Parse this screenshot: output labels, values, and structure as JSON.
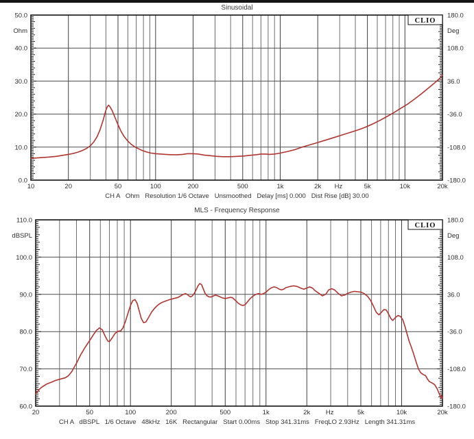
{
  "page": {
    "background": "#ffffff",
    "top_border_color": "#151515"
  },
  "charts": [
    {
      "id": "impedance",
      "title": "Sinusoidal",
      "brand": "CLIO",
      "status": "CH A   Ohm   Resolution 1/6 Octave   Unsmoothed   Delay [ms] 0.000   Dist Rise [dB] 30.00",
      "left_axis": {
        "unit": "Ohm",
        "min": 0,
        "max": 50,
        "tick_step": 10,
        "labels": [
          "50.0",
          "40.0",
          "30.0",
          "20.0",
          "10.0",
          "0.0"
        ]
      },
      "right_axis": {
        "unit": "Deg",
        "min": -180,
        "max": 180,
        "tick_step": 72,
        "labels": [
          "180.0",
          "108.0",
          "36.0",
          "-36.0",
          "-108.0",
          "-180.0"
        ]
      },
      "x_axis": {
        "unit": "Hz",
        "min": 10,
        "max": 20000,
        "labeled_ticks": [
          10,
          20,
          50,
          100,
          200,
          500,
          1000,
          2000,
          5000,
          10000,
          20000
        ],
        "tick_labels": [
          "10",
          "20",
          "50",
          "100",
          "200",
          "500",
          "1k",
          "2k",
          "5k",
          "10k",
          "20k"
        ]
      },
      "curve_color": "#b0342f"
    },
    {
      "id": "spl",
      "title": "MLS - Frequency Response",
      "brand": "CLIO",
      "status": "CH A   dBSPL   1/6 Octave   48kHz   16K   Rectangular   Start 0.00ms   Stop 341.31ms   FreqLO 2.93Hz   Length 341.31ms",
      "left_axis": {
        "unit": "dBSPL",
        "min": 60,
        "max": 110,
        "tick_step": 10,
        "labels": [
          "110.0",
          "100.0",
          "90.0",
          "80.0",
          "70.0",
          "60.0"
        ]
      },
      "right_axis": {
        "unit": "Deg",
        "min": -180,
        "max": 180,
        "tick_step": 72,
        "labels": [
          "180.0",
          "108.0",
          "36.0",
          "-36.0",
          "-108.0",
          "-180.0"
        ]
      },
      "x_axis": {
        "unit": "Hz",
        "min": 20,
        "max": 20000,
        "labeled_ticks": [
          20,
          50,
          100,
          200,
          500,
          1000,
          2000,
          5000,
          10000,
          20000
        ],
        "tick_labels": [
          "20",
          "50",
          "100",
          "200",
          "500",
          "1k",
          "2k",
          "5k",
          "10k",
          "20k"
        ]
      },
      "curve_color": "#b0342f"
    }
  ],
  "chart_data": [
    {
      "type": "line",
      "title": "Sinusoidal",
      "xlabel": "Hz",
      "ylabel": "Ohm",
      "y2label": "Deg",
      "xscale": "log",
      "xlim": [
        10,
        20000
      ],
      "ylim": [
        0,
        50
      ],
      "y2lim": [
        -180,
        180
      ],
      "grid": true,
      "series": [
        {
          "id": "impedance",
          "name": "Impedance (Ohm)",
          "color": "#b0342f",
          "points": [
            [
              10,
              6.6
            ],
            [
              11,
              6.7
            ],
            [
              12,
              6.8
            ],
            [
              14,
              7.0
            ],
            [
              16,
              7.2
            ],
            [
              18,
              7.5
            ],
            [
              20,
              7.8
            ],
            [
              22,
              8.1
            ],
            [
              24,
              8.5
            ],
            [
              26,
              9.0
            ],
            [
              28,
              9.6
            ],
            [
              30,
              10.4
            ],
            [
              32,
              11.6
            ],
            [
              34,
              13.2
            ],
            [
              36,
              15.4
            ],
            [
              38,
              18.2
            ],
            [
              40,
              21.2
            ],
            [
              41,
              22.2
            ],
            [
              42,
              22.7
            ],
            [
              43,
              22.3
            ],
            [
              45,
              21.0
            ],
            [
              47,
              19.2
            ],
            [
              50,
              16.8
            ],
            [
              53,
              14.7
            ],
            [
              56,
              13.2
            ],
            [
              60,
              11.8
            ],
            [
              64,
              10.8
            ],
            [
              68,
              10.1
            ],
            [
              72,
              9.6
            ],
            [
              78,
              9.0
            ],
            [
              85,
              8.5
            ],
            [
              92,
              8.2
            ],
            [
              100,
              8.0
            ],
            [
              110,
              7.9
            ],
            [
              120,
              7.8
            ],
            [
              135,
              7.7
            ],
            [
              150,
              7.7
            ],
            [
              165,
              7.8
            ],
            [
              180,
              8.0
            ],
            [
              200,
              8.0
            ],
            [
              220,
              7.9
            ],
            [
              245,
              7.6
            ],
            [
              275,
              7.4
            ],
            [
              310,
              7.2
            ],
            [
              350,
              7.1
            ],
            [
              400,
              7.1
            ],
            [
              450,
              7.2
            ],
            [
              510,
              7.3
            ],
            [
              570,
              7.5
            ],
            [
              640,
              7.7
            ],
            [
              700,
              7.9
            ],
            [
              760,
              7.9
            ],
            [
              820,
              7.8
            ],
            [
              900,
              7.9
            ],
            [
              1000,
              8.2
            ],
            [
              1150,
              8.7
            ],
            [
              1300,
              9.2
            ],
            [
              1500,
              10.0
            ],
            [
              1700,
              10.6
            ],
            [
              2000,
              11.4
            ],
            [
              2300,
              12.1
            ],
            [
              2700,
              12.9
            ],
            [
              3100,
              13.6
            ],
            [
              3600,
              14.4
            ],
            [
              4200,
              15.2
            ],
            [
              4800,
              16.0
            ],
            [
              5500,
              17.0
            ],
            [
              6300,
              18.1
            ],
            [
              7200,
              19.3
            ],
            [
              8200,
              20.5
            ],
            [
              9300,
              21.8
            ],
            [
              10500,
              23.0
            ],
            [
              12000,
              24.6
            ],
            [
              13500,
              26.1
            ],
            [
              15000,
              27.5
            ],
            [
              16500,
              28.8
            ],
            [
              18000,
              30.0
            ],
            [
              19000,
              30.8
            ],
            [
              20000,
              31.8
            ]
          ]
        }
      ]
    },
    {
      "type": "line",
      "title": "MLS - Frequency Response",
      "xlabel": "Hz",
      "ylabel": "dBSPL",
      "y2label": "Deg",
      "xscale": "log",
      "xlim": [
        20,
        20000
      ],
      "ylim": [
        60,
        110
      ],
      "y2lim": [
        -180,
        180
      ],
      "grid": true,
      "series": [
        {
          "id": "spl",
          "name": "SPL (dBSPL)",
          "color": "#b0342f",
          "points": [
            [
              20,
              63.2
            ],
            [
              21,
              64.3
            ],
            [
              22,
              65.0
            ],
            [
              24,
              65.9
            ],
            [
              26,
              66.4
            ],
            [
              28,
              66.9
            ],
            [
              30,
              67.2
            ],
            [
              33,
              67.6
            ],
            [
              35,
              68.2
            ],
            [
              37,
              69.3
            ],
            [
              40,
              71.5
            ],
            [
              43,
              73.8
            ],
            [
              46,
              75.6
            ],
            [
              50,
              77.6
            ],
            [
              53,
              79.0
            ],
            [
              56,
              80.3
            ],
            [
              59,
              81.0
            ],
            [
              62,
              80.5
            ],
            [
              65,
              78.8
            ],
            [
              68,
              77.5
            ],
            [
              70,
              77.3
            ],
            [
              73,
              78.2
            ],
            [
              77,
              79.5
            ],
            [
              81,
              80.1
            ],
            [
              85,
              80.2
            ],
            [
              88,
              81.0
            ],
            [
              92,
              82.8
            ],
            [
              96,
              85.0
            ],
            [
              100,
              87.0
            ],
            [
              104,
              88.3
            ],
            [
              108,
              88.6
            ],
            [
              112,
              87.6
            ],
            [
              116,
              85.6
            ],
            [
              120,
              83.6
            ],
            [
              125,
              82.4
            ],
            [
              130,
              82.6
            ],
            [
              136,
              83.8
            ],
            [
              143,
              85.2
            ],
            [
              150,
              86.2
            ],
            [
              158,
              87.0
            ],
            [
              166,
              87.6
            ],
            [
              175,
              88.0
            ],
            [
              185,
              88.3
            ],
            [
              195,
              88.6
            ],
            [
              205,
              88.8
            ],
            [
              215,
              89.0
            ],
            [
              225,
              89.2
            ],
            [
              235,
              89.6
            ],
            [
              245,
              90.0
            ],
            [
              255,
              90.2
            ],
            [
              262,
              90.0
            ],
            [
              270,
              89.6
            ],
            [
              278,
              89.3
            ],
            [
              286,
              89.6
            ],
            [
              295,
              90.2
            ],
            [
              305,
              91.2
            ],
            [
              315,
              92.3
            ],
            [
              325,
              92.9
            ],
            [
              335,
              92.6
            ],
            [
              345,
              91.4
            ],
            [
              355,
              90.3
            ],
            [
              365,
              89.7
            ],
            [
              380,
              89.3
            ],
            [
              395,
              89.3
            ],
            [
              410,
              89.6
            ],
            [
              425,
              89.8
            ],
            [
              440,
              89.6
            ],
            [
              460,
              89.3
            ],
            [
              480,
              89.0
            ],
            [
              500,
              88.9
            ],
            [
              520,
              89.0
            ],
            [
              545,
              89.2
            ],
            [
              565,
              89.1
            ],
            [
              585,
              88.6
            ],
            [
              605,
              88.1
            ],
            [
              625,
              87.6
            ],
            [
              650,
              87.2
            ],
            [
              675,
              87.0
            ],
            [
              700,
              87.2
            ],
            [
              730,
              88.0
            ],
            [
              760,
              88.8
            ],
            [
              800,
              89.5
            ],
            [
              840,
              90.0
            ],
            [
              880,
              90.2
            ],
            [
              920,
              90.0
            ],
            [
              960,
              90.2
            ],
            [
              1000,
              90.6
            ],
            [
              1050,
              91.3
            ],
            [
              1100,
              91.8
            ],
            [
              1150,
              92.0
            ],
            [
              1200,
              91.8
            ],
            [
              1250,
              91.4
            ],
            [
              1300,
              91.2
            ],
            [
              1350,
              91.4
            ],
            [
              1400,
              91.8
            ],
            [
              1500,
              92.1
            ],
            [
              1600,
              92.3
            ],
            [
              1700,
              92.1
            ],
            [
              1800,
              91.7
            ],
            [
              1900,
              91.4
            ],
            [
              2000,
              91.7
            ],
            [
              2100,
              92.0
            ],
            [
              2200,
              91.7
            ],
            [
              2300,
              91.0
            ],
            [
              2450,
              90.3
            ],
            [
              2600,
              89.6
            ],
            [
              2750,
              90.0
            ],
            [
              2900,
              91.2
            ],
            [
              3050,
              91.5
            ],
            [
              3200,
              91.2
            ],
            [
              3400,
              90.3
            ],
            [
              3600,
              89.6
            ],
            [
              3800,
              89.8
            ],
            [
              4000,
              90.3
            ],
            [
              4250,
              90.6
            ],
            [
              4500,
              90.8
            ],
            [
              4750,
              90.7
            ],
            [
              5000,
              90.6
            ],
            [
              5300,
              90.2
            ],
            [
              5600,
              89.5
            ],
            [
              5900,
              88.4
            ],
            [
              6200,
              86.8
            ],
            [
              6500,
              85.2
            ],
            [
              6800,
              84.5
            ],
            [
              7100,
              85.2
            ],
            [
              7400,
              85.9
            ],
            [
              7700,
              85.8
            ],
            [
              8000,
              84.8
            ],
            [
              8300,
              83.6
            ],
            [
              8600,
              83.0
            ],
            [
              9000,
              83.8
            ],
            [
              9400,
              84.3
            ],
            [
              9800,
              84.1
            ],
            [
              10200,
              83.2
            ],
            [
              10600,
              81.3
            ],
            [
              11000,
              79.2
            ],
            [
              11400,
              77.3
            ],
            [
              11800,
              75.8
            ],
            [
              12300,
              73.8
            ],
            [
              12800,
              71.8
            ],
            [
              13300,
              70.0
            ],
            [
              13800,
              69.0
            ],
            [
              14400,
              68.5
            ],
            [
              15000,
              68.2
            ],
            [
              15500,
              67.3
            ],
            [
              16000,
              66.6
            ],
            [
              16800,
              66.2
            ],
            [
              17500,
              65.8
            ],
            [
              18200,
              64.8
            ],
            [
              18800,
              63.6
            ],
            [
              19200,
              62.8
            ],
            [
              19500,
              62.2
            ],
            [
              19700,
              62.8
            ],
            [
              20000,
              62.1
            ]
          ]
        }
      ]
    }
  ]
}
